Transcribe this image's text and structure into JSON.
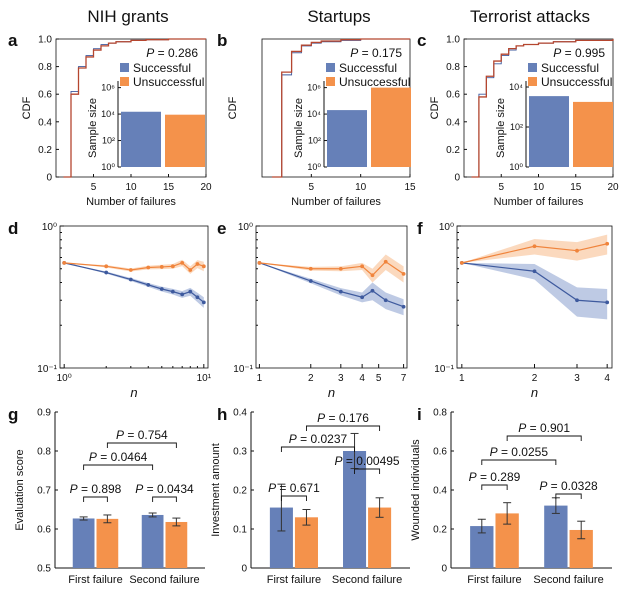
{
  "colors": {
    "successful": "#6680b8",
    "unsuccessful": "#f4924b",
    "blue_line": "#3e5a9e",
    "orange_line": "#f0843c",
    "cdf_line": "#b5462f",
    "blue_band": "#b3c1df",
    "orange_band": "#fad2b3"
  },
  "chart_data": [
    {
      "id": "a",
      "type": "line",
      "panel_letter": "a",
      "title": "NIH grants",
      "xlabel": "Number of failures",
      "ylabel": "CDF",
      "xlim": [
        0,
        20
      ],
      "ylim": [
        0,
        1
      ],
      "xticks": [
        "5",
        "10",
        "15",
        "20"
      ],
      "yticks": [
        "0",
        "0.2",
        "0.4",
        "0.6",
        "0.8",
        "1.0"
      ],
      "p_label": "P = 0.286",
      "series": [
        {
          "name": "Successful",
          "x": [
            1,
            2,
            3,
            4,
            5,
            6,
            7,
            8,
            10,
            12,
            15,
            20
          ],
          "y": [
            0.0,
            0.62,
            0.8,
            0.88,
            0.93,
            0.96,
            0.97,
            0.98,
            0.99,
            0.995,
            1.0,
            1.0
          ]
        },
        {
          "name": "Unsuccessful",
          "x": [
            1,
            2,
            3,
            4,
            5,
            6,
            7,
            8,
            10,
            12,
            15,
            20
          ],
          "y": [
            0.0,
            0.6,
            0.79,
            0.87,
            0.92,
            0.95,
            0.97,
            0.98,
            0.99,
            0.995,
            1.0,
            1.0
          ]
        }
      ],
      "inset": {
        "type": "bar",
        "ylabel": "Sample size",
        "yticks": [
          "10⁰",
          "10²",
          "10⁴",
          "10⁶"
        ],
        "legend": [
          "Successful",
          "Unsuccessful"
        ],
        "values": [
          15000,
          9000
        ]
      }
    },
    {
      "id": "b",
      "type": "line",
      "panel_letter": "b",
      "title": "Startups",
      "xlabel": "Number of failures",
      "ylabel": "CDF",
      "xlim": [
        0,
        15
      ],
      "ylim": [
        0,
        1
      ],
      "xticks": [
        "5",
        "10",
        "15"
      ],
      "yticks": [],
      "p_label": "P = 0.175",
      "series": [
        {
          "name": "Successful",
          "x": [
            1,
            2,
            3,
            4,
            5,
            6,
            8,
            10,
            15
          ],
          "y": [
            0.0,
            0.74,
            0.9,
            0.95,
            0.97,
            0.98,
            0.99,
            1.0,
            1.0
          ]
        },
        {
          "name": "Unsuccessful",
          "x": [
            1,
            2,
            3,
            4,
            5,
            6,
            8,
            10,
            15
          ],
          "y": [
            0.0,
            0.76,
            0.91,
            0.955,
            0.975,
            0.985,
            0.995,
            1.0,
            1.0
          ]
        }
      ],
      "inset": {
        "type": "bar",
        "ylabel": "Sample size",
        "yticks": [
          "10⁰",
          "10²",
          "10⁴",
          "10⁶"
        ],
        "legend": [
          "Successful",
          "Unsuccessful"
        ],
        "values": [
          20000,
          1000000
        ]
      }
    },
    {
      "id": "c",
      "type": "line",
      "panel_letter": "c",
      "title": "Terrorist attacks",
      "xlabel": "Number of failures",
      "ylabel": "CDF",
      "xlim": [
        0,
        20
      ],
      "ylim": [
        0,
        1
      ],
      "xticks": [
        "5",
        "10",
        "15",
        "20"
      ],
      "yticks": [
        "0",
        "0.2",
        "0.4",
        "0.6",
        "0.8",
        "1.0"
      ],
      "p_label": "P = 0.995",
      "series": [
        {
          "name": "Successful",
          "x": [
            1,
            2,
            3,
            4,
            5,
            6,
            7,
            8,
            10,
            12,
            15,
            20
          ],
          "y": [
            0.0,
            0.6,
            0.72,
            0.82,
            0.88,
            0.92,
            0.95,
            0.96,
            0.97,
            0.98,
            0.99,
            1.0
          ]
        },
        {
          "name": "Unsuccessful",
          "x": [
            1,
            2,
            3,
            4,
            5,
            6,
            7,
            8,
            10,
            12,
            15,
            20
          ],
          "y": [
            0.0,
            0.58,
            0.73,
            0.84,
            0.89,
            0.93,
            0.95,
            0.96,
            0.97,
            0.98,
            0.99,
            1.0
          ]
        }
      ],
      "inset": {
        "type": "bar",
        "ylabel": "Sample size",
        "yticks": [
          "10⁰",
          "10²",
          "10⁴"
        ],
        "legend": [
          "Successful",
          "Unsuccessful"
        ],
        "values": [
          3500,
          1800
        ]
      }
    },
    {
      "id": "d",
      "type": "line",
      "panel_letter": "d",
      "xlabel": "n",
      "xscale": "log",
      "yscale": "log",
      "xlim": [
        1,
        10
      ],
      "ylim": [
        0.1,
        1
      ],
      "xticks": [
        "10⁰",
        "10¹"
      ],
      "yticks": [
        "10⁻¹",
        "10⁰"
      ],
      "series": [
        {
          "name": "Successful",
          "x": [
            1,
            2,
            3,
            4,
            5,
            6,
            7,
            8,
            9,
            10
          ],
          "y": [
            0.55,
            0.47,
            0.42,
            0.385,
            0.36,
            0.345,
            0.33,
            0.345,
            0.315,
            0.29
          ],
          "err": [
            0,
            0.008,
            0.01,
            0.012,
            0.014,
            0.016,
            0.018,
            0.022,
            0.024,
            0.025
          ]
        },
        {
          "name": "Unsuccessful",
          "x": [
            1,
            2,
            3,
            4,
            5,
            6,
            7,
            8,
            9,
            10
          ],
          "y": [
            0.55,
            0.52,
            0.49,
            0.51,
            0.515,
            0.52,
            0.55,
            0.49,
            0.54,
            0.52
          ],
          "err": [
            0,
            0.01,
            0.012,
            0.015,
            0.018,
            0.02,
            0.028,
            0.03,
            0.035,
            0.04
          ]
        }
      ]
    },
    {
      "id": "e",
      "type": "line",
      "panel_letter": "e",
      "xlabel": "n",
      "xscale": "log",
      "yscale": "log",
      "xlim": [
        1,
        7
      ],
      "ylim": [
        0.1,
        1
      ],
      "xticks": [
        "1",
        "2",
        "3",
        "4",
        "5",
        "7"
      ],
      "yticks": [
        "10⁻¹",
        "10⁰"
      ],
      "series": [
        {
          "name": "Successful",
          "x": [
            1,
            2,
            3,
            4,
            4.6,
            5.5,
            7
          ],
          "y": [
            0.55,
            0.41,
            0.345,
            0.315,
            0.35,
            0.3,
            0.27
          ],
          "err": [
            0,
            0.015,
            0.02,
            0.025,
            0.05,
            0.04,
            0.035
          ]
        },
        {
          "name": "Unsuccessful",
          "x": [
            1,
            2,
            3,
            4,
            4.6,
            5.5,
            7
          ],
          "y": [
            0.55,
            0.5,
            0.5,
            0.52,
            0.45,
            0.56,
            0.46
          ],
          "err": [
            0,
            0.015,
            0.02,
            0.03,
            0.05,
            0.07,
            0.06
          ]
        }
      ]
    },
    {
      "id": "f",
      "type": "line",
      "panel_letter": "f",
      "xlabel": "n",
      "xscale": "log",
      "yscale": "log",
      "xlim": [
        1,
        4
      ],
      "ylim": [
        0.1,
        1
      ],
      "xticks": [
        "1",
        "2",
        "3",
        "4"
      ],
      "yticks": [
        "10⁻¹",
        "10⁰"
      ],
      "series": [
        {
          "name": "Successful",
          "x": [
            1,
            2,
            3,
            4
          ],
          "y": [
            0.55,
            0.48,
            0.3,
            0.29
          ],
          "err": [
            0,
            0.06,
            0.07,
            0.07
          ]
        },
        {
          "name": "Unsuccessful",
          "x": [
            1,
            2,
            3,
            4
          ],
          "y": [
            0.55,
            0.72,
            0.67,
            0.75
          ],
          "err": [
            0,
            0.09,
            0.1,
            0.12
          ]
        }
      ]
    },
    {
      "id": "g",
      "type": "bar",
      "panel_letter": "g",
      "ylabel": "Evaluation score",
      "ylim": [
        0.5,
        0.9
      ],
      "yticks": [
        "0.5",
        "0.6",
        "0.7",
        "0.8",
        "0.9"
      ],
      "categories": [
        "First failure",
        "Second failure"
      ],
      "series": [
        {
          "name": "Successful",
          "values": [
            0.627,
            0.636
          ],
          "err": [
            0.004,
            0.005
          ]
        },
        {
          "name": "Unsuccessful",
          "values": [
            0.626,
            0.618
          ],
          "err": [
            0.01,
            0.01
          ]
        }
      ],
      "annotations": [
        "P = 0.898",
        "P = 0.0434",
        "P = 0.0464",
        "P = 0.754"
      ]
    },
    {
      "id": "h",
      "type": "bar",
      "panel_letter": "h",
      "ylabel": "Investment amount",
      "ylim": [
        0,
        0.4
      ],
      "yticks": [
        "0",
        "0.1",
        "0.2",
        "0.3",
        "0.4"
      ],
      "categories": [
        "First failure",
        "Second failure"
      ],
      "series": [
        {
          "name": "Successful",
          "values": [
            0.155,
            0.3
          ],
          "err": [
            0.06,
            0.045
          ]
        },
        {
          "name": "Unsuccessful",
          "values": [
            0.13,
            0.155
          ],
          "err": [
            0.02,
            0.025
          ]
        }
      ],
      "annotations": [
        "P = 0.671",
        "P = 0.00495",
        "P = 0.0237",
        "P = 0.176"
      ]
    },
    {
      "id": "i",
      "type": "bar",
      "panel_letter": "i",
      "ylabel": "Wounded individuals",
      "ylim": [
        0,
        0.8
      ],
      "yticks": [
        "0",
        "0.2",
        "0.4",
        "0.6",
        "0.8"
      ],
      "categories": [
        "First failure",
        "Second failure"
      ],
      "series": [
        {
          "name": "Successful",
          "values": [
            0.215,
            0.32
          ],
          "err": [
            0.035,
            0.04
          ]
        },
        {
          "name": "Unsuccessful",
          "values": [
            0.28,
            0.195
          ],
          "err": [
            0.055,
            0.045
          ]
        }
      ],
      "annotations": [
        "P = 0.289",
        "P = 0.0328",
        "P = 0.0255",
        "P = 0.901"
      ]
    }
  ]
}
